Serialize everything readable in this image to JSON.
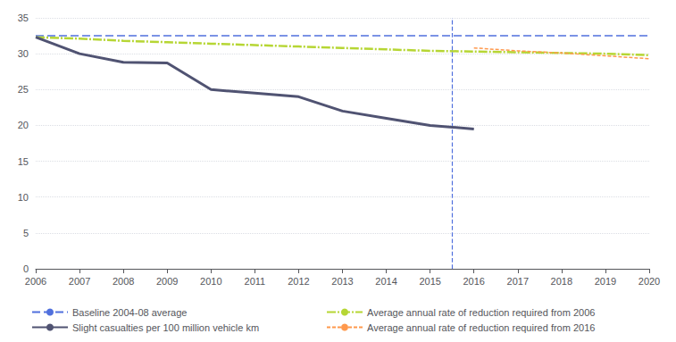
{
  "chart_data": {
    "type": "line",
    "series": [
      {
        "name": "Baseline 2004-08 average",
        "x": [
          2006,
          2020
        ],
        "values": [
          32.5,
          32.5
        ],
        "line_style": "dashed"
      },
      {
        "name": "Average annual rate of reduction required from 2006",
        "x": [
          2006,
          2007,
          2008,
          2009,
          2010,
          2011,
          2012,
          2013,
          2014,
          2015,
          2016,
          2017,
          2018,
          2019,
          2020
        ],
        "values": [
          32.3,
          32.1,
          31.8,
          31.6,
          31.4,
          31.2,
          31.0,
          30.8,
          30.6,
          30.4,
          30.3,
          30.2,
          30.1,
          30.0,
          29.8
        ],
        "line_style": "dashdot"
      },
      {
        "name": "Slight casualties per 100 million vehicle km",
        "x": [
          2006,
          2007,
          2008,
          2009,
          2010,
          2011,
          2012,
          2013,
          2014,
          2015,
          2016
        ],
        "values": [
          32.3,
          30.0,
          28.8,
          28.7,
          25.0,
          24.5,
          24.0,
          22.0,
          21.0,
          20.0,
          19.5
        ],
        "line_style": "solid"
      },
      {
        "name": "Average annual rate of reduction required from 2016",
        "x": [
          2016,
          2017,
          2018,
          2019,
          2020
        ],
        "values": [
          30.8,
          30.4,
          30.1,
          29.7,
          29.3
        ],
        "line_style": "densely_dashed"
      }
    ],
    "vline_x": 2015.5,
    "xlim": [
      2006,
      2020
    ],
    "xticks": [
      2006,
      2007,
      2008,
      2009,
      2010,
      2011,
      2012,
      2013,
      2014,
      2015,
      2016,
      2017,
      2018,
      2019,
      2020
    ],
    "ylim": [
      0,
      35
    ],
    "yticks": [
      0,
      5,
      10,
      15,
      20,
      25,
      30,
      35
    ],
    "grid": true,
    "legend": "bottom"
  }
}
